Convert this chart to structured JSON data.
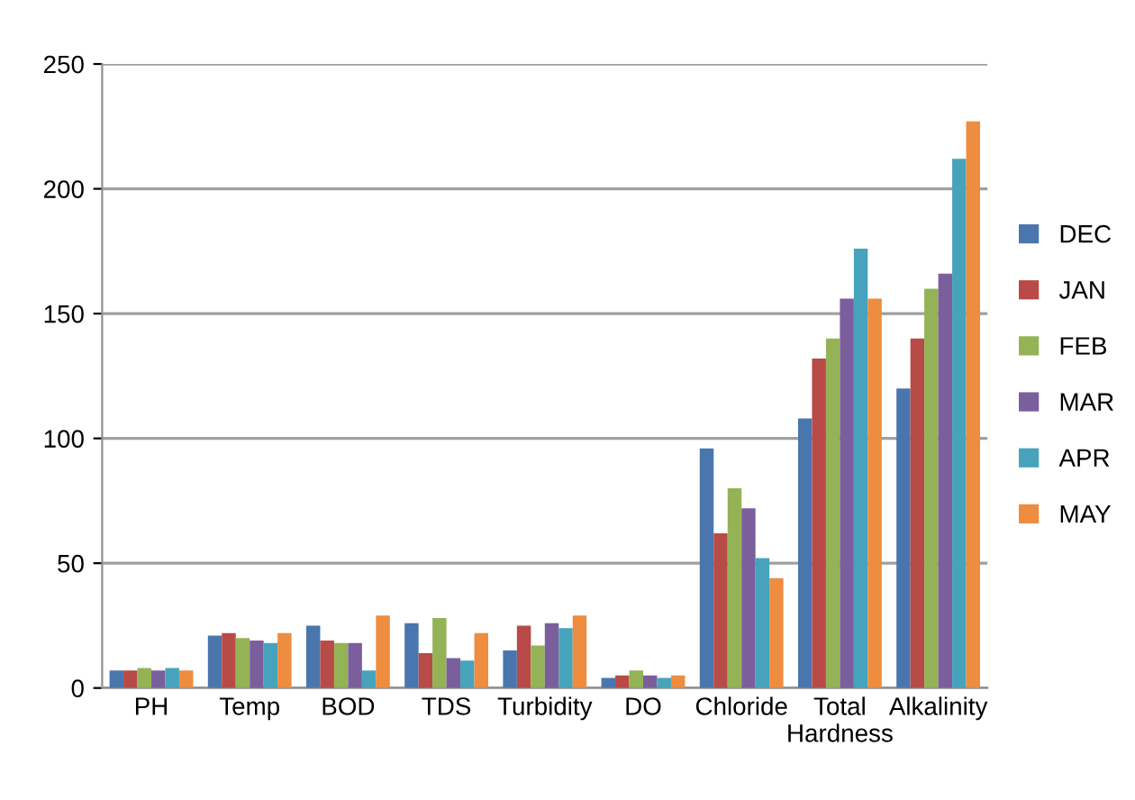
{
  "chart_data": {
    "type": "bar",
    "categories": [
      "PH",
      "Temp",
      "BOD",
      "TDS",
      "Turbidity",
      "DO",
      "Chloride",
      "Total\nHardness",
      "Alkalinity"
    ],
    "series": [
      {
        "name": "DEC",
        "color": "#4a76ad",
        "values": [
          7,
          21,
          25,
          26,
          15,
          4,
          96,
          108,
          120
        ]
      },
      {
        "name": "JAN",
        "color": "#b84a47",
        "values": [
          7,
          22,
          19,
          14,
          25,
          5,
          62,
          132,
          140
        ]
      },
      {
        "name": "FEB",
        "color": "#94b356",
        "values": [
          8,
          20,
          18,
          28,
          17,
          7,
          80,
          140,
          160
        ]
      },
      {
        "name": "MAR",
        "color": "#7a5f9c",
        "values": [
          7,
          19,
          18,
          12,
          26,
          5,
          72,
          156,
          166
        ]
      },
      {
        "name": "APR",
        "color": "#47a3bc",
        "values": [
          8,
          18,
          7,
          11,
          24,
          4,
          52,
          176,
          212
        ]
      },
      {
        "name": "MAY",
        "color": "#ee8c3f",
        "values": [
          7,
          22,
          29,
          22,
          29,
          5,
          44,
          156,
          227
        ]
      }
    ],
    "ylim": [
      0,
      250
    ],
    "yticks": [
      0,
      50,
      100,
      150,
      200,
      250
    ],
    "grid": "y",
    "legend": "right"
  }
}
